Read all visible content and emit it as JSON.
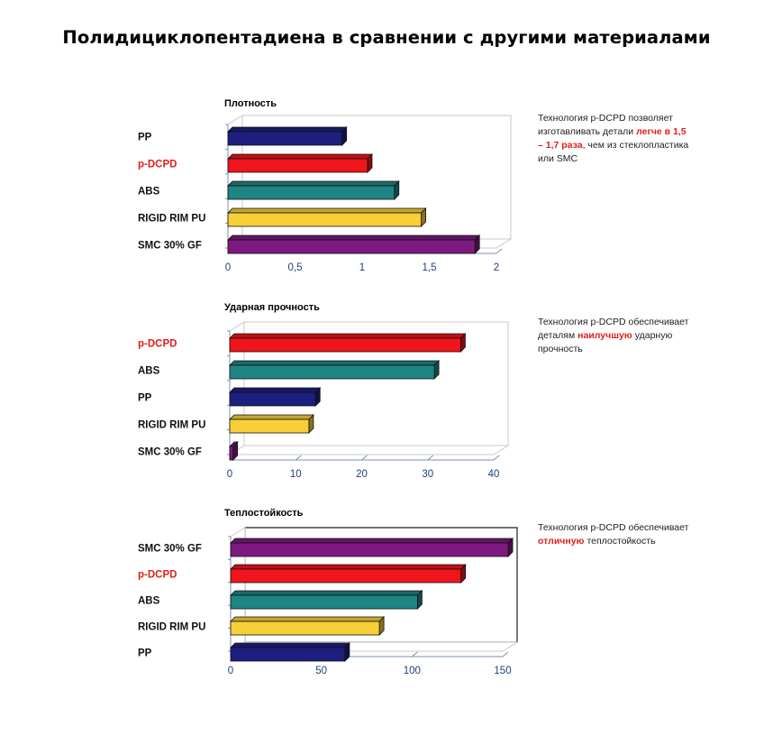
{
  "page": {
    "title": "Полидициклопентадиена в сравнении с другими материалами"
  },
  "colors": {
    "PP": "#1c1f7e",
    "p-DCPD": "#f0141c",
    "ABS": "#1f8583",
    "RIGID RIM PU": "#f7cf37",
    "SMC 30% GF": "#7d1a80",
    "highlight_label": "#e0201b"
  },
  "chart_data": [
    {
      "type": "bar",
      "orientation": "horizontal",
      "title": "Плотность",
      "categories": [
        "PP",
        "p-DCPD",
        "ABS",
        "RIGID RIM PU",
        "SMC 30% GF"
      ],
      "values": [
        0.85,
        1.04,
        1.24,
        1.44,
        1.84
      ],
      "xlim": [
        0,
        2
      ],
      "ticks": [
        "0",
        "0,5",
        "1",
        "1,5",
        "2"
      ],
      "tick_values": [
        0,
        0.5,
        1,
        1.5,
        2
      ],
      "highlight_category": "p-DCPD",
      "note": {
        "before": "Технология p-DCPD позволяет изготавливать детали ",
        "highlight": "легче в 1,5 – 1,7 раза",
        "after": ", чем из стеклопластика или SMC"
      }
    },
    {
      "type": "bar",
      "orientation": "horizontal",
      "title": "Ударная прочность",
      "categories": [
        "p-DCPD",
        "ABS",
        "PP",
        "RIGID RIM PU",
        "SMC 30% GF"
      ],
      "values": [
        35,
        31,
        13,
        12,
        0.5
      ],
      "xlim": [
        0,
        40
      ],
      "ticks": [
        "0",
        "10",
        "20",
        "30",
        "40"
      ],
      "tick_values": [
        0,
        10,
        20,
        30,
        40
      ],
      "highlight_category": "p-DCPD",
      "note": {
        "before": "Технология p-DCPD обеспечивает деталям ",
        "highlight": "наилучшую",
        "after": " ударную прочность"
      }
    },
    {
      "type": "bar",
      "orientation": "horizontal",
      "title": "Теплостойкость",
      "categories": [
        "SMC 30% GF",
        "p-DCPD",
        "ABS",
        "RIGID RIM PU",
        "PP"
      ],
      "values": [
        153,
        127,
        103,
        82,
        63
      ],
      "xlim": [
        0,
        150
      ],
      "ticks": [
        "0",
        "50",
        "100",
        "150"
      ],
      "tick_values": [
        0,
        50,
        100,
        150
      ],
      "highlight_category": "p-DCPD",
      "note": {
        "before": "Технология p-DCPD обеспечивает ",
        "highlight": "отличную",
        "after": " теплостойкость"
      }
    }
  ]
}
